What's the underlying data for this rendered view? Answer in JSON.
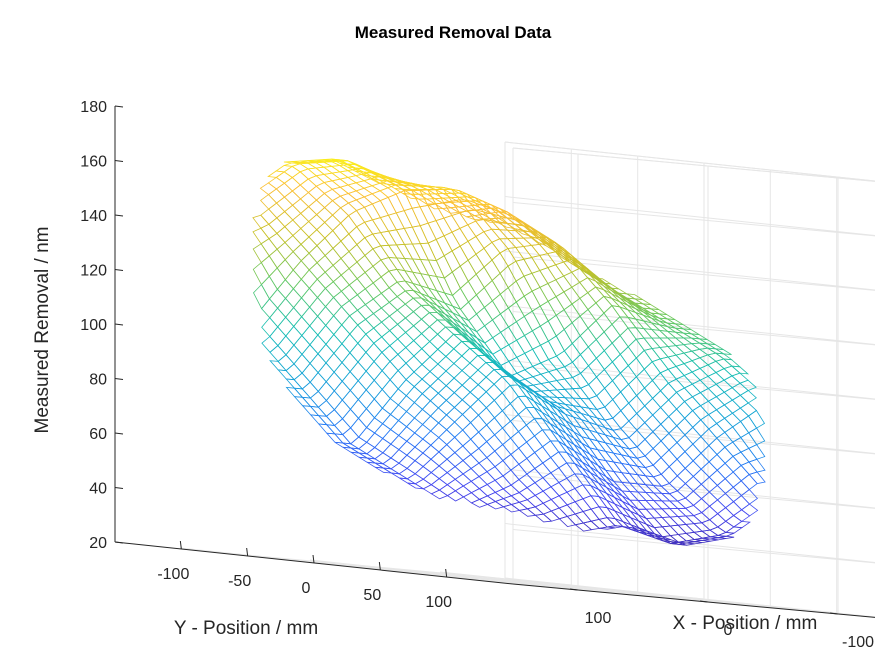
{
  "chart_data": {
    "type": "surface",
    "title": "Measured Removal Data",
    "xlabel": "X - Position / mm",
    "ylabel": "Y - Position / mm",
    "zlabel": "Measured Removal / nm",
    "x_ticks": [
      -100,
      0,
      100
    ],
    "y_ticks": [
      -100,
      -50,
      0,
      50,
      100
    ],
    "z_ticks": [
      20,
      40,
      60,
      80,
      100,
      120,
      140,
      160,
      180
    ],
    "xlim": [
      -150,
      150
    ],
    "ylim": [
      -150,
      150
    ],
    "zlim": [
      20,
      180
    ],
    "grid": true,
    "colormap": "parula",
    "colormap_colors": [
      "#3e26a8",
      "#4748f1",
      "#277af6",
      "#17a4d8",
      "#18bfb5",
      "#66c963",
      "#c8c128",
      "#fbbf36",
      "#f9fb15"
    ],
    "surface": {
      "description_values": "approximate removal depth sampled on a circular aperture",
      "x": [
        -120,
        -80,
        -40,
        0,
        40,
        80,
        120
      ],
      "y": [
        -120,
        -80,
        -40,
        0,
        40,
        80,
        120
      ],
      "z": [
        [
          null,
          150,
          160,
          168,
          165,
          150,
          null
        ],
        [
          140,
          155,
          162,
          160,
          150,
          130,
          105
        ],
        [
          130,
          145,
          140,
          120,
          125,
          110,
          85
        ],
        [
          120,
          125,
          105,
          95,
          110,
          90,
          65
        ],
        [
          110,
          100,
          80,
          85,
          95,
          75,
          55
        ],
        [
          95,
          80,
          60,
          60,
          70,
          55,
          45
        ],
        [
          null,
          60,
          45,
          40,
          45,
          40,
          null
        ]
      ]
    }
  }
}
